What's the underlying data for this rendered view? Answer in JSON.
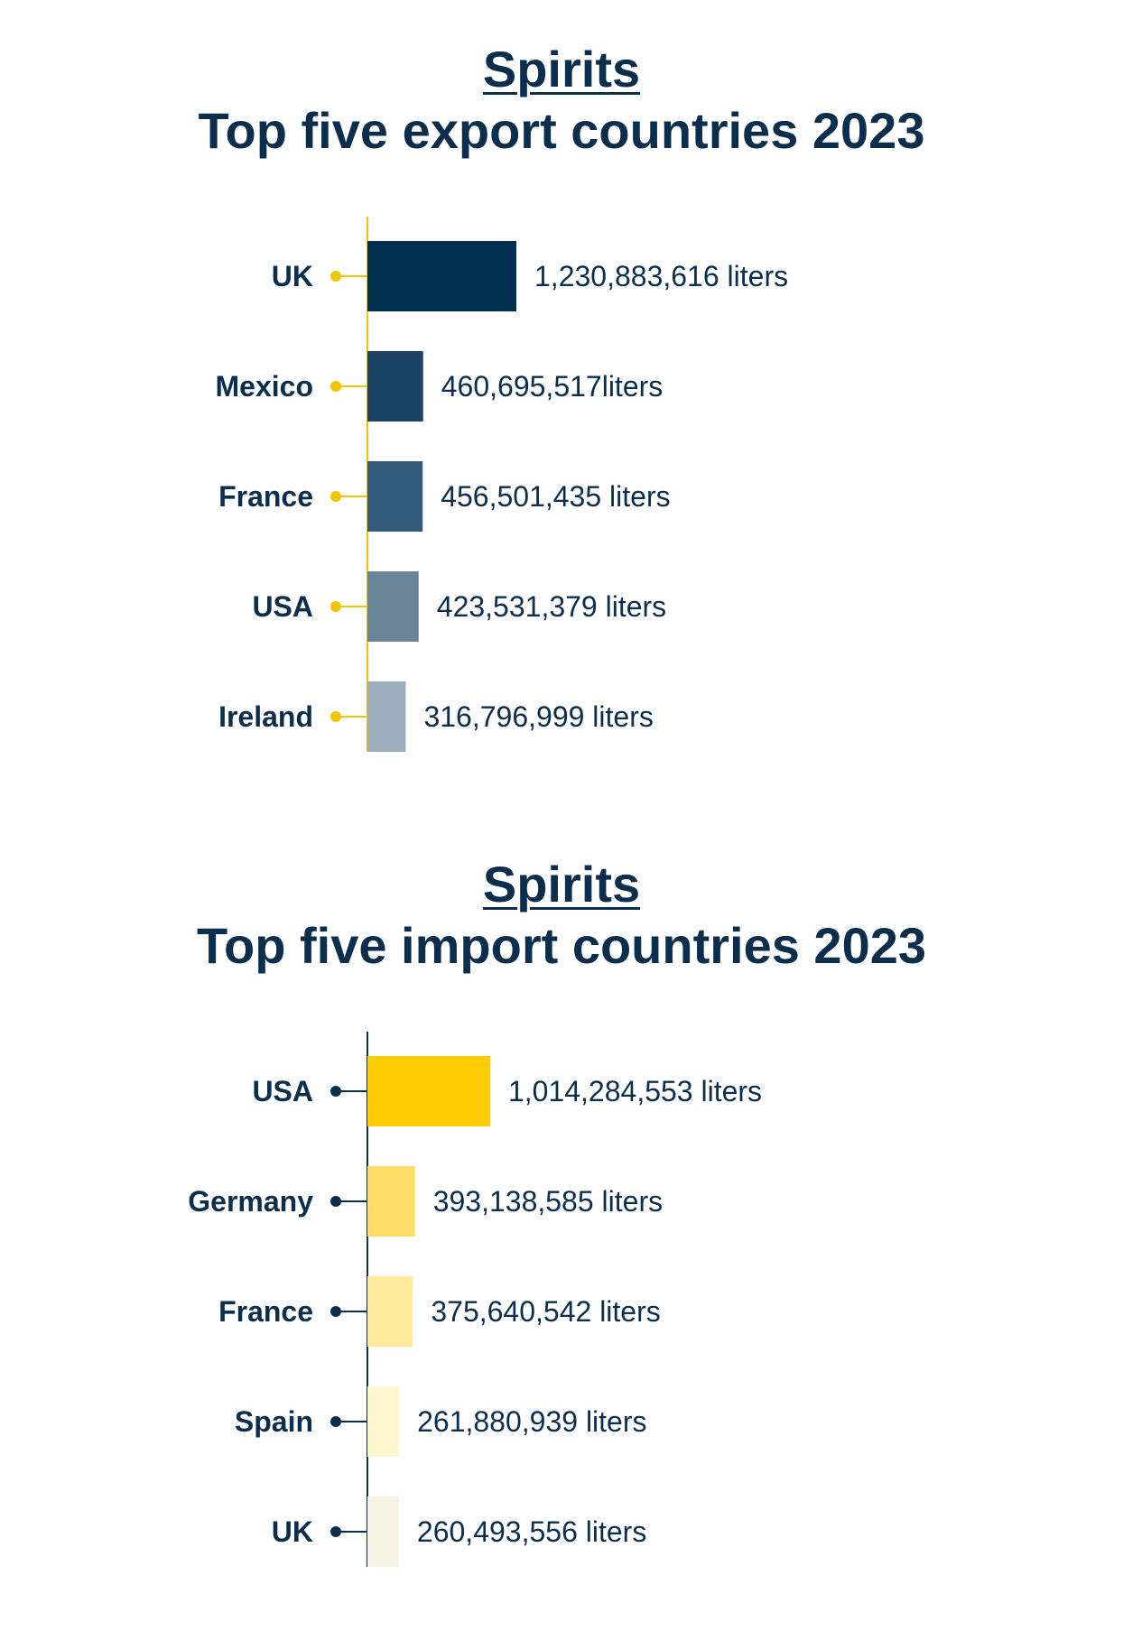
{
  "charts": [
    {
      "title_line1": "Spirits",
      "title_line2": "Top five export countries 2023",
      "axis_color": "#f5c400",
      "dot_color": "#f5c400"
    },
    {
      "title_line1": "Spirits",
      "title_line2": "Top five import countries 2023",
      "axis_color": "#0c2e4d",
      "dot_color": "#0c2e4d"
    }
  ],
  "chart_data": [
    {
      "type": "bar",
      "orientation": "horizontal",
      "title": "Spirits Top five export countries 2023",
      "categories": [
        "UK",
        "Mexico",
        "France",
        "USA",
        "Ireland"
      ],
      "values": [
        1230883616,
        460695517,
        456501435,
        423531379,
        316796999
      ],
      "value_labels": [
        "1,230,883,616 liters",
        "460,695,517liters",
        "456,501,435 liters",
        "423,531,379 liters",
        "316,796,999 liters"
      ],
      "colors": [
        "#00304f",
        "#1c4263",
        "#335a78",
        "#6a8499",
        "#9caebd"
      ],
      "xlabel": "",
      "ylabel": "",
      "grid": false,
      "legend": "none"
    },
    {
      "type": "bar",
      "orientation": "horizontal",
      "title": "Spirits Top five import countries 2023",
      "categories": [
        "USA",
        "Germany",
        "France",
        "Spain",
        "UK"
      ],
      "values": [
        1014284553,
        393138585,
        375640542,
        261880939,
        260493556
      ],
      "value_labels": [
        "1,014,284,553 liters",
        "393,138,585 liters",
        "375,640,542 liters",
        "261,880,939 liters",
        "260,493,556 liters"
      ],
      "colors": [
        "#ffcc00",
        "#ffdd66",
        "#ffea9e",
        "#fff5cf",
        "#f8f2e3"
      ],
      "xlabel": "",
      "ylabel": "",
      "grid": false,
      "legend": "none"
    }
  ]
}
